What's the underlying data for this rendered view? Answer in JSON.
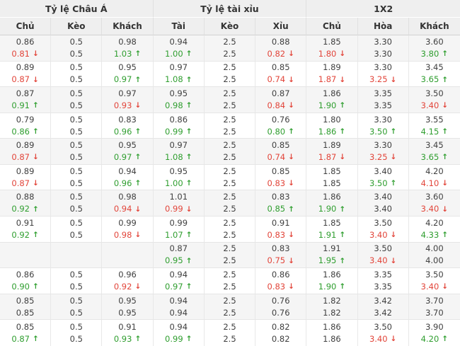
{
  "colors": {
    "up_green": "#2f9e2f",
    "down_red": "#e2453a",
    "text": "#404040",
    "header_bg": "#efefef",
    "alt_row_bg": "#f5f5f5",
    "border": "#e6e6e6"
  },
  "icons": {
    "up_arrow": "↑",
    "down_arrow": "↓"
  },
  "table": {
    "groups": [
      {
        "label": "Tỷ lệ Châu Á",
        "columns": [
          "Chủ",
          "Kèo",
          "Khách"
        ]
      },
      {
        "label": "Tỷ lệ tài xỉu",
        "columns": [
          "Tài",
          "Kèo",
          "Xỉu"
        ]
      },
      {
        "label": "1X2",
        "columns": [
          "Chủ",
          "Hòa",
          "Khách"
        ]
      }
    ],
    "rows": [
      {
        "cells": [
          {
            "top": "0.86",
            "bottom": "0.81",
            "trend": "down"
          },
          {
            "top": "0.5",
            "bottom": "0.5",
            "trend": "none"
          },
          {
            "top": "0.98",
            "bottom": "1.03",
            "trend": "up"
          },
          {
            "top": "0.94",
            "bottom": "1.00",
            "trend": "up"
          },
          {
            "top": "2.5",
            "bottom": "2.5",
            "trend": "none"
          },
          {
            "top": "0.88",
            "bottom": "0.82",
            "trend": "down"
          },
          {
            "top": "1.85",
            "bottom": "1.80",
            "trend": "down"
          },
          {
            "top": "3.30",
            "bottom": "3.30",
            "trend": "none"
          },
          {
            "top": "3.60",
            "bottom": "3.80",
            "trend": "up"
          }
        ]
      },
      {
        "cells": [
          {
            "top": "0.89",
            "bottom": "0.87",
            "trend": "down"
          },
          {
            "top": "0.5",
            "bottom": "0.5",
            "trend": "none"
          },
          {
            "top": "0.95",
            "bottom": "0.97",
            "trend": "up"
          },
          {
            "top": "0.97",
            "bottom": "1.08",
            "trend": "up"
          },
          {
            "top": "2.5",
            "bottom": "2.5",
            "trend": "none"
          },
          {
            "top": "0.85",
            "bottom": "0.74",
            "trend": "down"
          },
          {
            "top": "1.89",
            "bottom": "1.87",
            "trend": "down"
          },
          {
            "top": "3.30",
            "bottom": "3.25",
            "trend": "down"
          },
          {
            "top": "3.45",
            "bottom": "3.65",
            "trend": "up"
          }
        ]
      },
      {
        "cells": [
          {
            "top": "0.87",
            "bottom": "0.91",
            "trend": "up"
          },
          {
            "top": "0.5",
            "bottom": "0.5",
            "trend": "none"
          },
          {
            "top": "0.97",
            "bottom": "0.93",
            "trend": "down"
          },
          {
            "top": "0.95",
            "bottom": "0.98",
            "trend": "up"
          },
          {
            "top": "2.5",
            "bottom": "2.5",
            "trend": "none"
          },
          {
            "top": "0.87",
            "bottom": "0.84",
            "trend": "down"
          },
          {
            "top": "1.86",
            "bottom": "1.90",
            "trend": "up"
          },
          {
            "top": "3.35",
            "bottom": "3.35",
            "trend": "none"
          },
          {
            "top": "3.50",
            "bottom": "3.40",
            "trend": "down"
          }
        ]
      },
      {
        "cells": [
          {
            "top": "0.79",
            "bottom": "0.86",
            "trend": "up"
          },
          {
            "top": "0.5",
            "bottom": "0.5",
            "trend": "none"
          },
          {
            "top": "0.83",
            "bottom": "0.96",
            "trend": "up"
          },
          {
            "top": "0.86",
            "bottom": "0.99",
            "trend": "up"
          },
          {
            "top": "2.5",
            "bottom": "2.5",
            "trend": "none"
          },
          {
            "top": "0.76",
            "bottom": "0.80",
            "trend": "up"
          },
          {
            "top": "1.80",
            "bottom": "1.86",
            "trend": "up"
          },
          {
            "top": "3.30",
            "bottom": "3.50",
            "trend": "up"
          },
          {
            "top": "3.55",
            "bottom": "4.15",
            "trend": "up"
          }
        ]
      },
      {
        "cells": [
          {
            "top": "0.89",
            "bottom": "0.87",
            "trend": "down"
          },
          {
            "top": "0.5",
            "bottom": "0.5",
            "trend": "none"
          },
          {
            "top": "0.95",
            "bottom": "0.97",
            "trend": "up"
          },
          {
            "top": "0.97",
            "bottom": "1.08",
            "trend": "up"
          },
          {
            "top": "2.5",
            "bottom": "2.5",
            "trend": "none"
          },
          {
            "top": "0.85",
            "bottom": "0.74",
            "trend": "down"
          },
          {
            "top": "1.89",
            "bottom": "1.87",
            "trend": "down"
          },
          {
            "top": "3.30",
            "bottom": "3.25",
            "trend": "down"
          },
          {
            "top": "3.45",
            "bottom": "3.65",
            "trend": "up"
          }
        ]
      },
      {
        "cells": [
          {
            "top": "0.89",
            "bottom": "0.87",
            "trend": "down"
          },
          {
            "top": "0.5",
            "bottom": "0.5",
            "trend": "none"
          },
          {
            "top": "0.94",
            "bottom": "0.96",
            "trend": "up"
          },
          {
            "top": "0.95",
            "bottom": "1.00",
            "trend": "up"
          },
          {
            "top": "2.5",
            "bottom": "2.5",
            "trend": "none"
          },
          {
            "top": "0.85",
            "bottom": "0.83",
            "trend": "down"
          },
          {
            "top": "1.85",
            "bottom": "1.85",
            "trend": "none"
          },
          {
            "top": "3.40",
            "bottom": "3.50",
            "trend": "up"
          },
          {
            "top": "4.20",
            "bottom": "4.10",
            "trend": "down"
          }
        ]
      },
      {
        "cells": [
          {
            "top": "0.88",
            "bottom": "0.92",
            "trend": "up"
          },
          {
            "top": "0.5",
            "bottom": "0.5",
            "trend": "none"
          },
          {
            "top": "0.98",
            "bottom": "0.94",
            "trend": "down"
          },
          {
            "top": "1.01",
            "bottom": "0.99",
            "trend": "down"
          },
          {
            "top": "2.5",
            "bottom": "2.5",
            "trend": "none"
          },
          {
            "top": "0.83",
            "bottom": "0.85",
            "trend": "up"
          },
          {
            "top": "1.86",
            "bottom": "1.90",
            "trend": "up"
          },
          {
            "top": "3.40",
            "bottom": "3.40",
            "trend": "none"
          },
          {
            "top": "3.60",
            "bottom": "3.40",
            "trend": "down"
          }
        ]
      },
      {
        "cells": [
          {
            "top": "0.91",
            "bottom": "0.92",
            "trend": "up"
          },
          {
            "top": "0.5",
            "bottom": "0.5",
            "trend": "none"
          },
          {
            "top": "0.99",
            "bottom": "0.98",
            "trend": "down"
          },
          {
            "top": "0.99",
            "bottom": "1.07",
            "trend": "up"
          },
          {
            "top": "2.5",
            "bottom": "2.5",
            "trend": "none"
          },
          {
            "top": "0.91",
            "bottom": "0.83",
            "trend": "down"
          },
          {
            "top": "1.85",
            "bottom": "1.91",
            "trend": "up"
          },
          {
            "top": "3.50",
            "bottom": "3.40",
            "trend": "down"
          },
          {
            "top": "4.20",
            "bottom": "4.33",
            "trend": "up"
          }
        ]
      },
      {
        "cells": [
          {
            "top": "",
            "bottom": "",
            "trend": "none"
          },
          {
            "top": "",
            "bottom": "",
            "trend": "none"
          },
          {
            "top": "",
            "bottom": "",
            "trend": "none"
          },
          {
            "top": "0.87",
            "bottom": "0.95",
            "trend": "up"
          },
          {
            "top": "2.5",
            "bottom": "2.5",
            "trend": "none"
          },
          {
            "top": "0.83",
            "bottom": "0.75",
            "trend": "down"
          },
          {
            "top": "1.91",
            "bottom": "1.95",
            "trend": "up"
          },
          {
            "top": "3.50",
            "bottom": "3.40",
            "trend": "down"
          },
          {
            "top": "4.00",
            "bottom": "4.00",
            "trend": "none"
          }
        ]
      },
      {
        "cells": [
          {
            "top": "0.86",
            "bottom": "0.90",
            "trend": "up"
          },
          {
            "top": "0.5",
            "bottom": "0.5",
            "trend": "none"
          },
          {
            "top": "0.96",
            "bottom": "0.92",
            "trend": "down"
          },
          {
            "top": "0.94",
            "bottom": "0.97",
            "trend": "up"
          },
          {
            "top": "2.5",
            "bottom": "2.5",
            "trend": "none"
          },
          {
            "top": "0.86",
            "bottom": "0.83",
            "trend": "down"
          },
          {
            "top": "1.86",
            "bottom": "1.90",
            "trend": "up"
          },
          {
            "top": "3.35",
            "bottom": "3.35",
            "trend": "none"
          },
          {
            "top": "3.50",
            "bottom": "3.40",
            "trend": "down"
          }
        ]
      },
      {
        "cells": [
          {
            "top": "0.85",
            "bottom": "0.85",
            "trend": "none"
          },
          {
            "top": "0.5",
            "bottom": "0.5",
            "trend": "none"
          },
          {
            "top": "0.95",
            "bottom": "0.95",
            "trend": "none"
          },
          {
            "top": "0.94",
            "bottom": "0.94",
            "trend": "none"
          },
          {
            "top": "2.5",
            "bottom": "2.5",
            "trend": "none"
          },
          {
            "top": "0.76",
            "bottom": "0.76",
            "trend": "none"
          },
          {
            "top": "1.82",
            "bottom": "1.82",
            "trend": "none"
          },
          {
            "top": "3.42",
            "bottom": "3.42",
            "trend": "none"
          },
          {
            "top": "3.70",
            "bottom": "3.70",
            "trend": "none"
          }
        ]
      },
      {
        "cells": [
          {
            "top": "0.85",
            "bottom": "0.87",
            "trend": "up"
          },
          {
            "top": "0.5",
            "bottom": "0.5",
            "trend": "none"
          },
          {
            "top": "0.91",
            "bottom": "0.93",
            "trend": "up"
          },
          {
            "top": "0.94",
            "bottom": "0.99",
            "trend": "up"
          },
          {
            "top": "2.5",
            "bottom": "2.5",
            "trend": "none"
          },
          {
            "top": "0.82",
            "bottom": "0.82",
            "trend": "none"
          },
          {
            "top": "1.86",
            "bottom": "1.86",
            "trend": "none"
          },
          {
            "top": "3.50",
            "bottom": "3.40",
            "trend": "down"
          },
          {
            "top": "3.90",
            "bottom": "4.20",
            "trend": "up"
          }
        ]
      }
    ]
  }
}
